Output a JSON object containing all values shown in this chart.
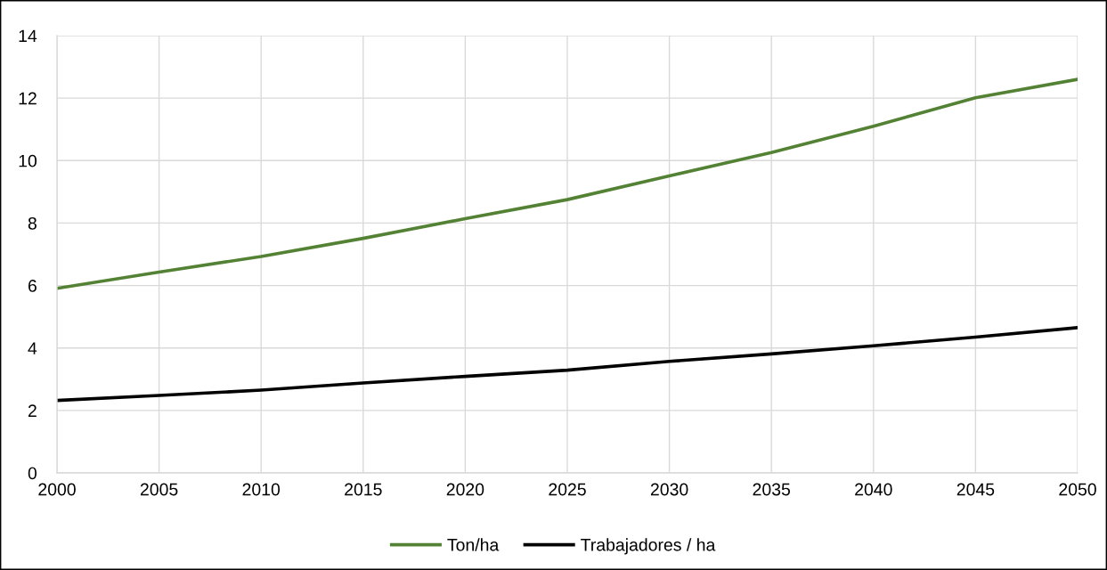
{
  "chart_data": {
    "type": "line",
    "x": [
      2000,
      2005,
      2010,
      2015,
      2020,
      2025,
      2030,
      2035,
      2040,
      2045,
      2050
    ],
    "series": [
      {
        "name": "Ton/ha",
        "color": "#548235",
        "values": [
          5.91,
          6.43,
          6.93,
          7.51,
          8.14,
          8.75,
          9.51,
          10.26,
          11.1,
          12.01,
          12.6
        ]
      },
      {
        "name": "Trabajadores / ha",
        "color": "#000000",
        "values": [
          2.32,
          2.48,
          2.65,
          2.88,
          3.09,
          3.29,
          3.57,
          3.81,
          4.07,
          4.35,
          4.65
        ]
      }
    ],
    "xlim": [
      2000,
      2050
    ],
    "xticks": [
      2000,
      2005,
      2010,
      2015,
      2020,
      2025,
      2030,
      2035,
      2040,
      2045,
      2050
    ],
    "ylim": [
      0,
      14
    ],
    "yticks": [
      0,
      2,
      4,
      6,
      8,
      10,
      12,
      14
    ],
    "grid": true,
    "legend": "bottom",
    "line_style": "solid"
  }
}
